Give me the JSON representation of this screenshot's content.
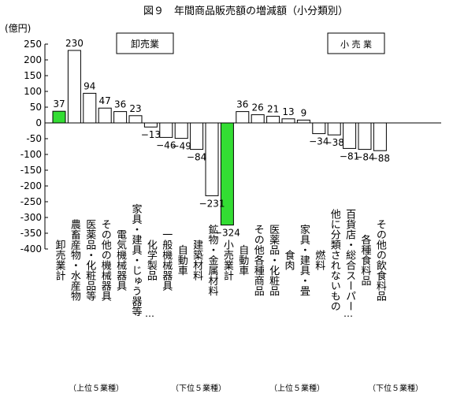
{
  "chart_data": {
    "type": "bar",
    "title": "図９　年間商品販売額の増減額（小分類別）",
    "ylabel": "(億円)",
    "ylim": [
      -400,
      250
    ],
    "yticks": [
      250,
      200,
      150,
      100,
      50,
      0,
      -50,
      -100,
      -150,
      -200,
      -250,
      -300,
      -350,
      -400
    ],
    "grid": false,
    "legend": "none",
    "highlight_color": "#33dd33",
    "bar_color": "#ffffff",
    "sections": [
      {
        "label": "卸売業",
        "box": true
      },
      {
        "label": "小 売 業",
        "box": true
      }
    ],
    "groups": [
      {
        "label": "（上位５業種）"
      },
      {
        "label": "（下位５業種）"
      },
      {
        "label": "（上位５業種）"
      },
      {
        "label": "（下位５業種）"
      }
    ],
    "bars": [
      {
        "category": "卸売業計",
        "value": 37,
        "label": "37",
        "highlight": true
      },
      {
        "category": "農畜産物・水産物",
        "value": 230,
        "label": "230"
      },
      {
        "category": "医薬品・化粧品等",
        "value": 94,
        "label": "94"
      },
      {
        "category": "その他の機械器具",
        "value": 47,
        "label": "47"
      },
      {
        "category": "電気機械器具",
        "value": 36,
        "label": "36"
      },
      {
        "category": "家具・建具・じゅう器等",
        "value": 23,
        "label": "23"
      },
      {
        "category": "化学製品",
        "value": -13,
        "label": "−13"
      },
      {
        "category": "一般機械器具",
        "value": -46,
        "label": "−46"
      },
      {
        "category": "自動車",
        "value": -49,
        "label": "−49"
      },
      {
        "category": "建築材料",
        "value": -84,
        "label": "−84"
      },
      {
        "category": "鉱物・金属材料",
        "value": -231,
        "label": "−231"
      },
      {
        "category": "小売業計",
        "value": -324,
        "label": "−324",
        "highlight": true
      },
      {
        "category": "自動車",
        "value": 36,
        "label": "36"
      },
      {
        "category": "その他各種商品",
        "value": 26,
        "label": "26"
      },
      {
        "category": "医薬品・化粧品",
        "value": 21,
        "label": "21"
      },
      {
        "category": "食肉",
        "value": 13,
        "label": "13"
      },
      {
        "category": "家具・建具・畳",
        "value": 9,
        "label": "9"
      },
      {
        "category": "燃料",
        "value": -34,
        "label": "−34"
      },
      {
        "category": "他に分類されないもの",
        "value": -38,
        "label": "−38"
      },
      {
        "category": "百貨店・総合スーパー",
        "value": -81,
        "label": "−81"
      },
      {
        "category": "各種食料品",
        "value": -84,
        "label": "−84"
      },
      {
        "category": "その他の飲食料品",
        "value": -88,
        "label": "−88"
      }
    ],
    "ellipsis": "…"
  }
}
